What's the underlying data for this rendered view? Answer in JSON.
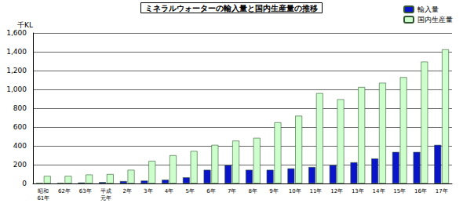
{
  "chart_data": {
    "type": "bar",
    "title": "ミネラルウォーターの輸入量と国内生産量の推移",
    "y_label": "千KL",
    "categories": [
      "昭和\n61年",
      "62年",
      "63年",
      "平成\n元年",
      "2年",
      "3年",
      "4年",
      "5年",
      "6年",
      "7年",
      "8年",
      "9年",
      "10年",
      "11年",
      "12年",
      "13年",
      "14年",
      "15年",
      "16年",
      "17年"
    ],
    "series": [
      {
        "name": "輸入量",
        "color": "#0a14c8",
        "values": [
          3,
          4,
          10,
          15,
          25,
          30,
          40,
          65,
          145,
          195,
          145,
          145,
          160,
          175,
          195,
          225,
          265,
          335,
          335,
          410
        ]
      },
      {
        "name": "国内生産量",
        "color": "#ccffcc",
        "values": [
          80,
          80,
          95,
          100,
          145,
          240,
          300,
          345,
          410,
          455,
          485,
          650,
          720,
          960,
          895,
          1025,
          1070,
          1130,
          1295,
          1425
        ]
      }
    ],
    "ylim": [
      0,
      1600
    ],
    "yticks": [
      0,
      200,
      400,
      600,
      800,
      {
        "value": 1000,
        "label": "1,000"
      },
      {
        "value": 1200,
        "label": "1,200"
      },
      {
        "value": 1400,
        "label": "1,400"
      },
      {
        "value": 1600,
        "label": "1,600"
      }
    ],
    "grid": true,
    "legend": "top-right"
  }
}
